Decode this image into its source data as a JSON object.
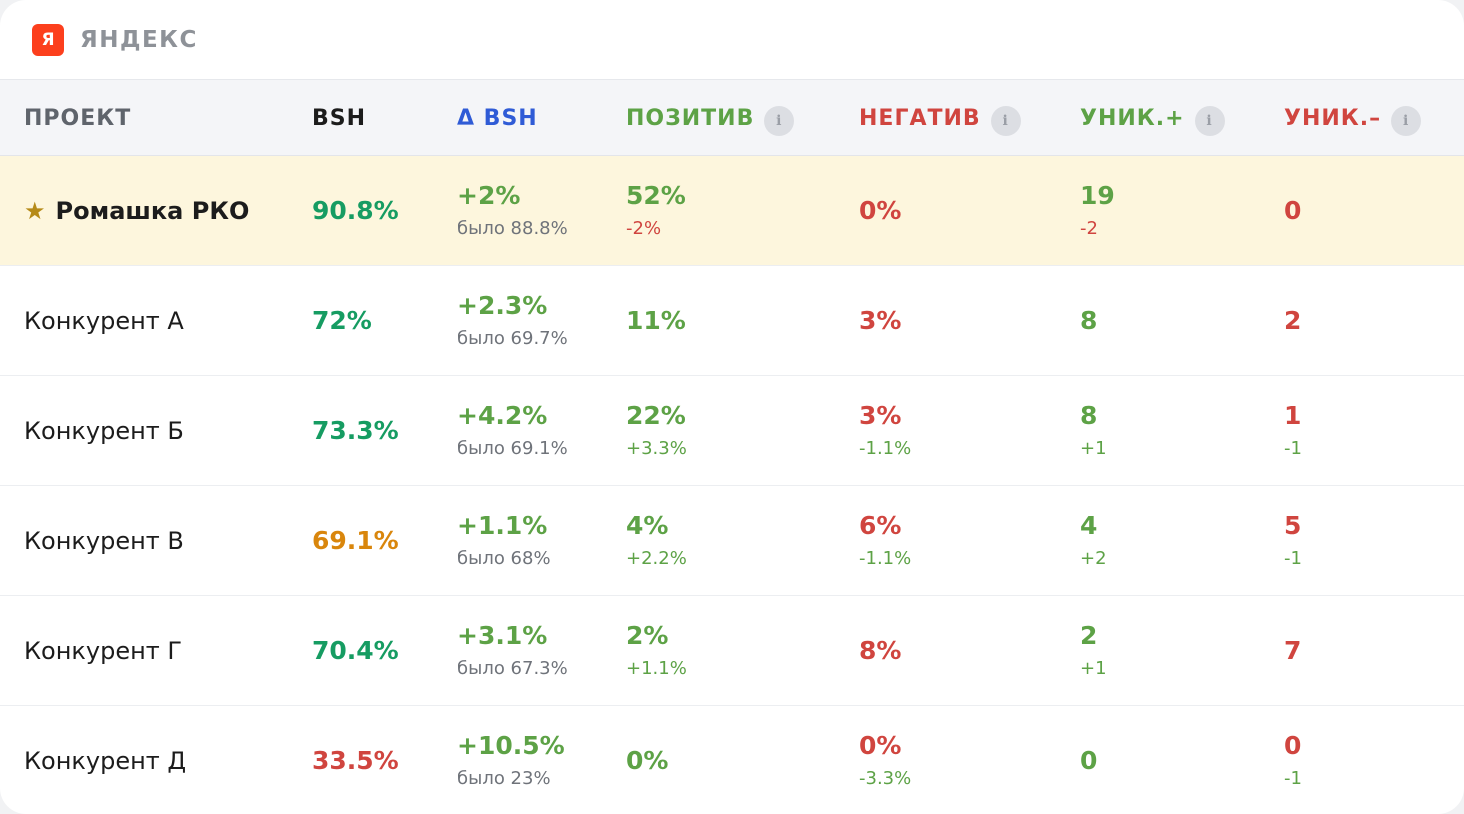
{
  "brand": {
    "logo_letter": "Я",
    "name": "ЯНДЕКС",
    "logo_color": "#fc3f1d"
  },
  "columns": {
    "project": "ПРОЕКТ",
    "bsh": "BSH",
    "delta_bsh": "Δ BSH",
    "positive": "ПОЗИТИВ",
    "negative": "НЕГАТИВ",
    "unique_pos": "УНИК.+",
    "unique_neg": "УНИК.–",
    "info_glyph": "i"
  },
  "colors": {
    "positive": "#5da246",
    "negative": "#d0453f",
    "delta_header": "#2f5bd6",
    "bsh_good": "#169c62",
    "bsh_mid": "#d9860c",
    "bsh_bad": "#d0453f",
    "highlight_row": "#fdf6dd"
  },
  "rows": [
    {
      "star": "★",
      "name": "Ромашка РКО",
      "bsh": "90.8%",
      "bsh_color": "green",
      "delta": "+2%",
      "was": "было 88.8%",
      "positive": "52%",
      "positive_delta": "-2%",
      "positive_delta_sign": "neg",
      "negative": "0%",
      "negative_delta": "",
      "negative_delta_sign": "",
      "uniq_pos": "19",
      "uniq_pos_delta": "-2",
      "uniq_pos_delta_sign": "neg",
      "uniq_neg": "0",
      "uniq_neg_delta": "",
      "uniq_neg_delta_sign": ""
    },
    {
      "star": "",
      "name": "Конкурент А",
      "bsh": "72%",
      "bsh_color": "green",
      "delta": "+2.3%",
      "was": "было 69.7%",
      "positive": "11%",
      "positive_delta": "",
      "positive_delta_sign": "",
      "negative": "3%",
      "negative_delta": "",
      "negative_delta_sign": "",
      "uniq_pos": "8",
      "uniq_pos_delta": "",
      "uniq_pos_delta_sign": "",
      "uniq_neg": "2",
      "uniq_neg_delta": "",
      "uniq_neg_delta_sign": ""
    },
    {
      "star": "",
      "name": "Конкурент Б",
      "bsh": "73.3%",
      "bsh_color": "green",
      "delta": "+4.2%",
      "was": "было 69.1%",
      "positive": "22%",
      "positive_delta": "+3.3%",
      "positive_delta_sign": "pos",
      "negative": "3%",
      "negative_delta": "-1.1%",
      "negative_delta_sign": "pos",
      "uniq_pos": "8",
      "uniq_pos_delta": "+1",
      "uniq_pos_delta_sign": "pos",
      "uniq_neg": "1",
      "uniq_neg_delta": "-1",
      "uniq_neg_delta_sign": "pos"
    },
    {
      "star": "",
      "name": "Конкурент В",
      "bsh": "69.1%",
      "bsh_color": "orange",
      "delta": "+1.1%",
      "was": "было 68%",
      "positive": "4%",
      "positive_delta": "+2.2%",
      "positive_delta_sign": "pos",
      "negative": "6%",
      "negative_delta": "-1.1%",
      "negative_delta_sign": "pos",
      "uniq_pos": "4",
      "uniq_pos_delta": "+2",
      "uniq_pos_delta_sign": "pos",
      "uniq_neg": "5",
      "uniq_neg_delta": "-1",
      "uniq_neg_delta_sign": "pos"
    },
    {
      "star": "",
      "name": "Конкурент Г",
      "bsh": "70.4%",
      "bsh_color": "green",
      "delta": "+3.1%",
      "was": "было 67.3%",
      "positive": "2%",
      "positive_delta": "+1.1%",
      "positive_delta_sign": "pos",
      "negative": "8%",
      "negative_delta": "",
      "negative_delta_sign": "",
      "uniq_pos": "2",
      "uniq_pos_delta": "+1",
      "uniq_pos_delta_sign": "pos",
      "uniq_neg": "7",
      "uniq_neg_delta": "",
      "uniq_neg_delta_sign": ""
    },
    {
      "star": "",
      "name": "Конкурент Д",
      "bsh": "33.5%",
      "bsh_color": "red",
      "delta": "+10.5%",
      "was": "было 23%",
      "positive": "0%",
      "positive_delta": "",
      "positive_delta_sign": "",
      "negative": "0%",
      "negative_delta": "-3.3%",
      "negative_delta_sign": "pos",
      "uniq_pos": "0",
      "uniq_pos_delta": "",
      "uniq_pos_delta_sign": "",
      "uniq_neg": "0",
      "uniq_neg_delta": "-1",
      "uniq_neg_delta_sign": "pos"
    }
  ]
}
